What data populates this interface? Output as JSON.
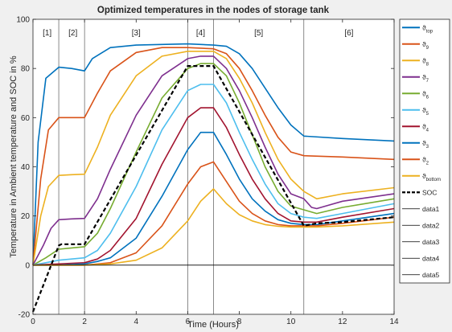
{
  "chart_data": {
    "type": "line",
    "title": "Optimized temperatures in the nodes of storage tank",
    "xlabel": "Time (Hours)",
    "ylabel": "Temperature in Ambient temperature and SOC in %",
    "xlim": [
      0,
      14
    ],
    "ylim": [
      -20,
      100
    ],
    "xticks": [
      0,
      2,
      4,
      6,
      8,
      10,
      12,
      14
    ],
    "yticks": [
      -20,
      0,
      20,
      40,
      60,
      80,
      100
    ],
    "grid": false,
    "legend_position": "outside-right",
    "phase_boundaries": [
      1,
      2,
      6,
      7,
      10.5
    ],
    "phases": [
      {
        "label": "[1]",
        "x": 0.55
      },
      {
        "label": "[2]",
        "x": 1.55
      },
      {
        "label": "[3]",
        "x": 4.0
      },
      {
        "label": "[4]",
        "x": 6.5
      },
      {
        "label": "[5]",
        "x": 8.75
      },
      {
        "label": "[6]",
        "x": 12.25
      }
    ],
    "series": [
      {
        "name": "ϑtop",
        "base": "ϑ",
        "sub": "top",
        "color": "#0072BD",
        "style": "solid",
        "points": [
          [
            0,
            0
          ],
          [
            0.2,
            50
          ],
          [
            0.5,
            76
          ],
          [
            1,
            80.5
          ],
          [
            1.5,
            80
          ],
          [
            2,
            79
          ],
          [
            2.3,
            84
          ],
          [
            3,
            88.5
          ],
          [
            4,
            89.5
          ],
          [
            6,
            90
          ],
          [
            7,
            89.5
          ],
          [
            7.5,
            89
          ],
          [
            8,
            86
          ],
          [
            8.5,
            80
          ],
          [
            9,
            72
          ],
          [
            9.5,
            64
          ],
          [
            10,
            57
          ],
          [
            10.5,
            52.5
          ],
          [
            12,
            51.5
          ],
          [
            14,
            50.5
          ]
        ]
      },
      {
        "name": "ϑ9",
        "base": "ϑ",
        "sub": "9",
        "color": "#D95319",
        "style": "solid",
        "points": [
          [
            0,
            0
          ],
          [
            0.3,
            35
          ],
          [
            0.6,
            55
          ],
          [
            1,
            60
          ],
          [
            1.5,
            60
          ],
          [
            2,
            60
          ],
          [
            2.5,
            70
          ],
          [
            3,
            79
          ],
          [
            4,
            86.5
          ],
          [
            5,
            88.5
          ],
          [
            6,
            88.5
          ],
          [
            7,
            88
          ],
          [
            7.5,
            86
          ],
          [
            8,
            80
          ],
          [
            8.5,
            71
          ],
          [
            9,
            61
          ],
          [
            9.5,
            52
          ],
          [
            10,
            46
          ],
          [
            10.5,
            44.5
          ],
          [
            12,
            44
          ],
          [
            14,
            43
          ]
        ]
      },
      {
        "name": "ϑ8",
        "base": "ϑ",
        "sub": "8",
        "color": "#EDB120",
        "style": "solid",
        "points": [
          [
            0,
            0
          ],
          [
            0.3,
            20
          ],
          [
            0.6,
            32
          ],
          [
            1,
            36.5
          ],
          [
            1.5,
            36.8
          ],
          [
            2,
            37
          ],
          [
            2.5,
            48
          ],
          [
            3,
            61
          ],
          [
            4,
            77
          ],
          [
            5,
            85
          ],
          [
            6,
            87
          ],
          [
            7,
            87
          ],
          [
            7.5,
            84
          ],
          [
            8,
            76
          ],
          [
            8.5,
            66
          ],
          [
            9,
            54
          ],
          [
            9.5,
            43
          ],
          [
            10,
            35
          ],
          [
            10.3,
            32
          ],
          [
            10.5,
            30
          ],
          [
            11,
            27
          ],
          [
            12,
            29
          ],
          [
            14,
            31.5
          ]
        ]
      },
      {
        "name": "ϑ7",
        "base": "ϑ",
        "sub": "7",
        "color": "#7E2F8E",
        "style": "solid",
        "points": [
          [
            0,
            0
          ],
          [
            0.4,
            8
          ],
          [
            0.7,
            15
          ],
          [
            1,
            18.5
          ],
          [
            1.5,
            18.8
          ],
          [
            2,
            19
          ],
          [
            2.5,
            27
          ],
          [
            3,
            39
          ],
          [
            4,
            61
          ],
          [
            5,
            77
          ],
          [
            6,
            84
          ],
          [
            6.5,
            85
          ],
          [
            7,
            85
          ],
          [
            7.5,
            80
          ],
          [
            8,
            71
          ],
          [
            8.5,
            60
          ],
          [
            9,
            48
          ],
          [
            9.5,
            37
          ],
          [
            10,
            29
          ],
          [
            10.5,
            27
          ],
          [
            10.8,
            23.5
          ],
          [
            11,
            23
          ],
          [
            12,
            26
          ],
          [
            14,
            29
          ]
        ]
      },
      {
        "name": "ϑ6",
        "base": "ϑ",
        "sub": "6",
        "color": "#77AC30",
        "style": "solid",
        "points": [
          [
            0,
            0
          ],
          [
            0.5,
            3
          ],
          [
            1,
            6.5
          ],
          [
            1.5,
            7
          ],
          [
            2,
            7.5
          ],
          [
            2.5,
            13
          ],
          [
            3,
            23
          ],
          [
            4,
            46
          ],
          [
            5,
            68
          ],
          [
            6,
            80
          ],
          [
            6.5,
            82
          ],
          [
            7,
            82
          ],
          [
            7.5,
            77
          ],
          [
            8,
            66
          ],
          [
            8.5,
            53
          ],
          [
            9,
            40
          ],
          [
            9.5,
            30
          ],
          [
            10,
            24
          ],
          [
            10.5,
            22.5
          ],
          [
            11,
            21
          ],
          [
            12,
            23.5
          ],
          [
            14,
            27
          ]
        ]
      },
      {
        "name": "ϑ5",
        "base": "ϑ",
        "sub": "5",
        "color": "#4DBEEE",
        "style": "solid",
        "points": [
          [
            0,
            0
          ],
          [
            0.5,
            1
          ],
          [
            1,
            2
          ],
          [
            1.5,
            2.5
          ],
          [
            2,
            3
          ],
          [
            2.5,
            6
          ],
          [
            3,
            13
          ],
          [
            4,
            32
          ],
          [
            5,
            55
          ],
          [
            6,
            71
          ],
          [
            6.5,
            73.5
          ],
          [
            7,
            73.5
          ],
          [
            7.5,
            66
          ],
          [
            8,
            54
          ],
          [
            8.5,
            43
          ],
          [
            9,
            33
          ],
          [
            9.5,
            25
          ],
          [
            10,
            21
          ],
          [
            10.5,
            19.5
          ],
          [
            11,
            19
          ],
          [
            12,
            21
          ],
          [
            14,
            25
          ]
        ]
      },
      {
        "name": "ϑ4",
        "base": "ϑ",
        "sub": "4",
        "color": "#A2142F",
        "style": "solid",
        "points": [
          [
            0,
            0
          ],
          [
            1,
            0.5
          ],
          [
            2,
            1
          ],
          [
            2.5,
            2.5
          ],
          [
            3,
            6
          ],
          [
            4,
            19
          ],
          [
            5,
            41
          ],
          [
            6,
            60
          ],
          [
            6.5,
            64
          ],
          [
            7,
            64
          ],
          [
            7.5,
            56
          ],
          [
            8,
            45
          ],
          [
            8.5,
            35
          ],
          [
            9,
            27
          ],
          [
            9.5,
            21
          ],
          [
            10,
            18
          ],
          [
            10.5,
            17.5
          ],
          [
            11,
            17.5
          ],
          [
            12,
            19.5
          ],
          [
            14,
            23
          ]
        ]
      },
      {
        "name": "ϑ3",
        "base": "ϑ",
        "sub": "3",
        "color": "#0072BD",
        "style": "solid",
        "points": [
          [
            0,
            0
          ],
          [
            1,
            0
          ],
          [
            2,
            0.5
          ],
          [
            2.5,
            1.5
          ],
          [
            3,
            3
          ],
          [
            4,
            11
          ],
          [
            5,
            28
          ],
          [
            6,
            47
          ],
          [
            6.5,
            54
          ],
          [
            7,
            54
          ],
          [
            7.5,
            45
          ],
          [
            8,
            35
          ],
          [
            8.5,
            27
          ],
          [
            9,
            22
          ],
          [
            9.5,
            18.5
          ],
          [
            10,
            17
          ],
          [
            10.5,
            16.5
          ],
          [
            11,
            16.5
          ],
          [
            12,
            18
          ],
          [
            14,
            21
          ]
        ]
      },
      {
        "name": "ϑ2",
        "base": "ϑ",
        "sub": "2",
        "color": "#D95319",
        "style": "solid",
        "points": [
          [
            0,
            0
          ],
          [
            2,
            0
          ],
          [
            3,
            1
          ],
          [
            4,
            5
          ],
          [
            5,
            16
          ],
          [
            6,
            33
          ],
          [
            6.5,
            40
          ],
          [
            7,
            42
          ],
          [
            7.5,
            34
          ],
          [
            8,
            26
          ],
          [
            8.5,
            21
          ],
          [
            9,
            18
          ],
          [
            9.5,
            16.5
          ],
          [
            10,
            16
          ],
          [
            10.5,
            16
          ],
          [
            11,
            16
          ],
          [
            12,
            17
          ],
          [
            14,
            19.5
          ]
        ]
      },
      {
        "name": "ϑbottom",
        "base": "ϑ",
        "sub": "bottom",
        "color": "#EDB120",
        "style": "solid",
        "points": [
          [
            0,
            0
          ],
          [
            2,
            0
          ],
          [
            3,
            0.5
          ],
          [
            4,
            2
          ],
          [
            5,
            7
          ],
          [
            6,
            18
          ],
          [
            6.5,
            26
          ],
          [
            7,
            31
          ],
          [
            7.5,
            25
          ],
          [
            8,
            20.5
          ],
          [
            8.5,
            18
          ],
          [
            9,
            16.5
          ],
          [
            9.5,
            15.8
          ],
          [
            10,
            15.5
          ],
          [
            10.5,
            15.5
          ],
          [
            11,
            15.5
          ],
          [
            12,
            16
          ],
          [
            14,
            17.5
          ]
        ]
      },
      {
        "name": "SOC",
        "base": "SOC",
        "sub": "",
        "color": "#000000",
        "style": "dashed",
        "points": [
          [
            0,
            -19
          ],
          [
            1,
            8
          ],
          [
            1.1,
            8.5
          ],
          [
            2,
            8.5
          ],
          [
            6,
            81
          ],
          [
            7,
            81
          ],
          [
            10.5,
            16
          ],
          [
            11,
            17
          ],
          [
            12,
            17.5
          ],
          [
            14,
            19.5
          ]
        ]
      },
      {
        "name": "data1",
        "base": "data1",
        "sub": "",
        "color": "#000000",
        "style": "thin",
        "points": [
          [
            0,
            0
          ],
          [
            14,
            0
          ]
        ]
      },
      {
        "name": "data2",
        "base": "data2",
        "sub": "",
        "color": "#000000",
        "style": "thin",
        "points": []
      },
      {
        "name": "data3",
        "base": "data3",
        "sub": "",
        "color": "#000000",
        "style": "thin",
        "points": []
      },
      {
        "name": "data4",
        "base": "data4",
        "sub": "",
        "color": "#000000",
        "style": "thin",
        "points": []
      },
      {
        "name": "data5",
        "base": "data5",
        "sub": "",
        "color": "#000000",
        "style": "thin",
        "points": []
      }
    ]
  }
}
